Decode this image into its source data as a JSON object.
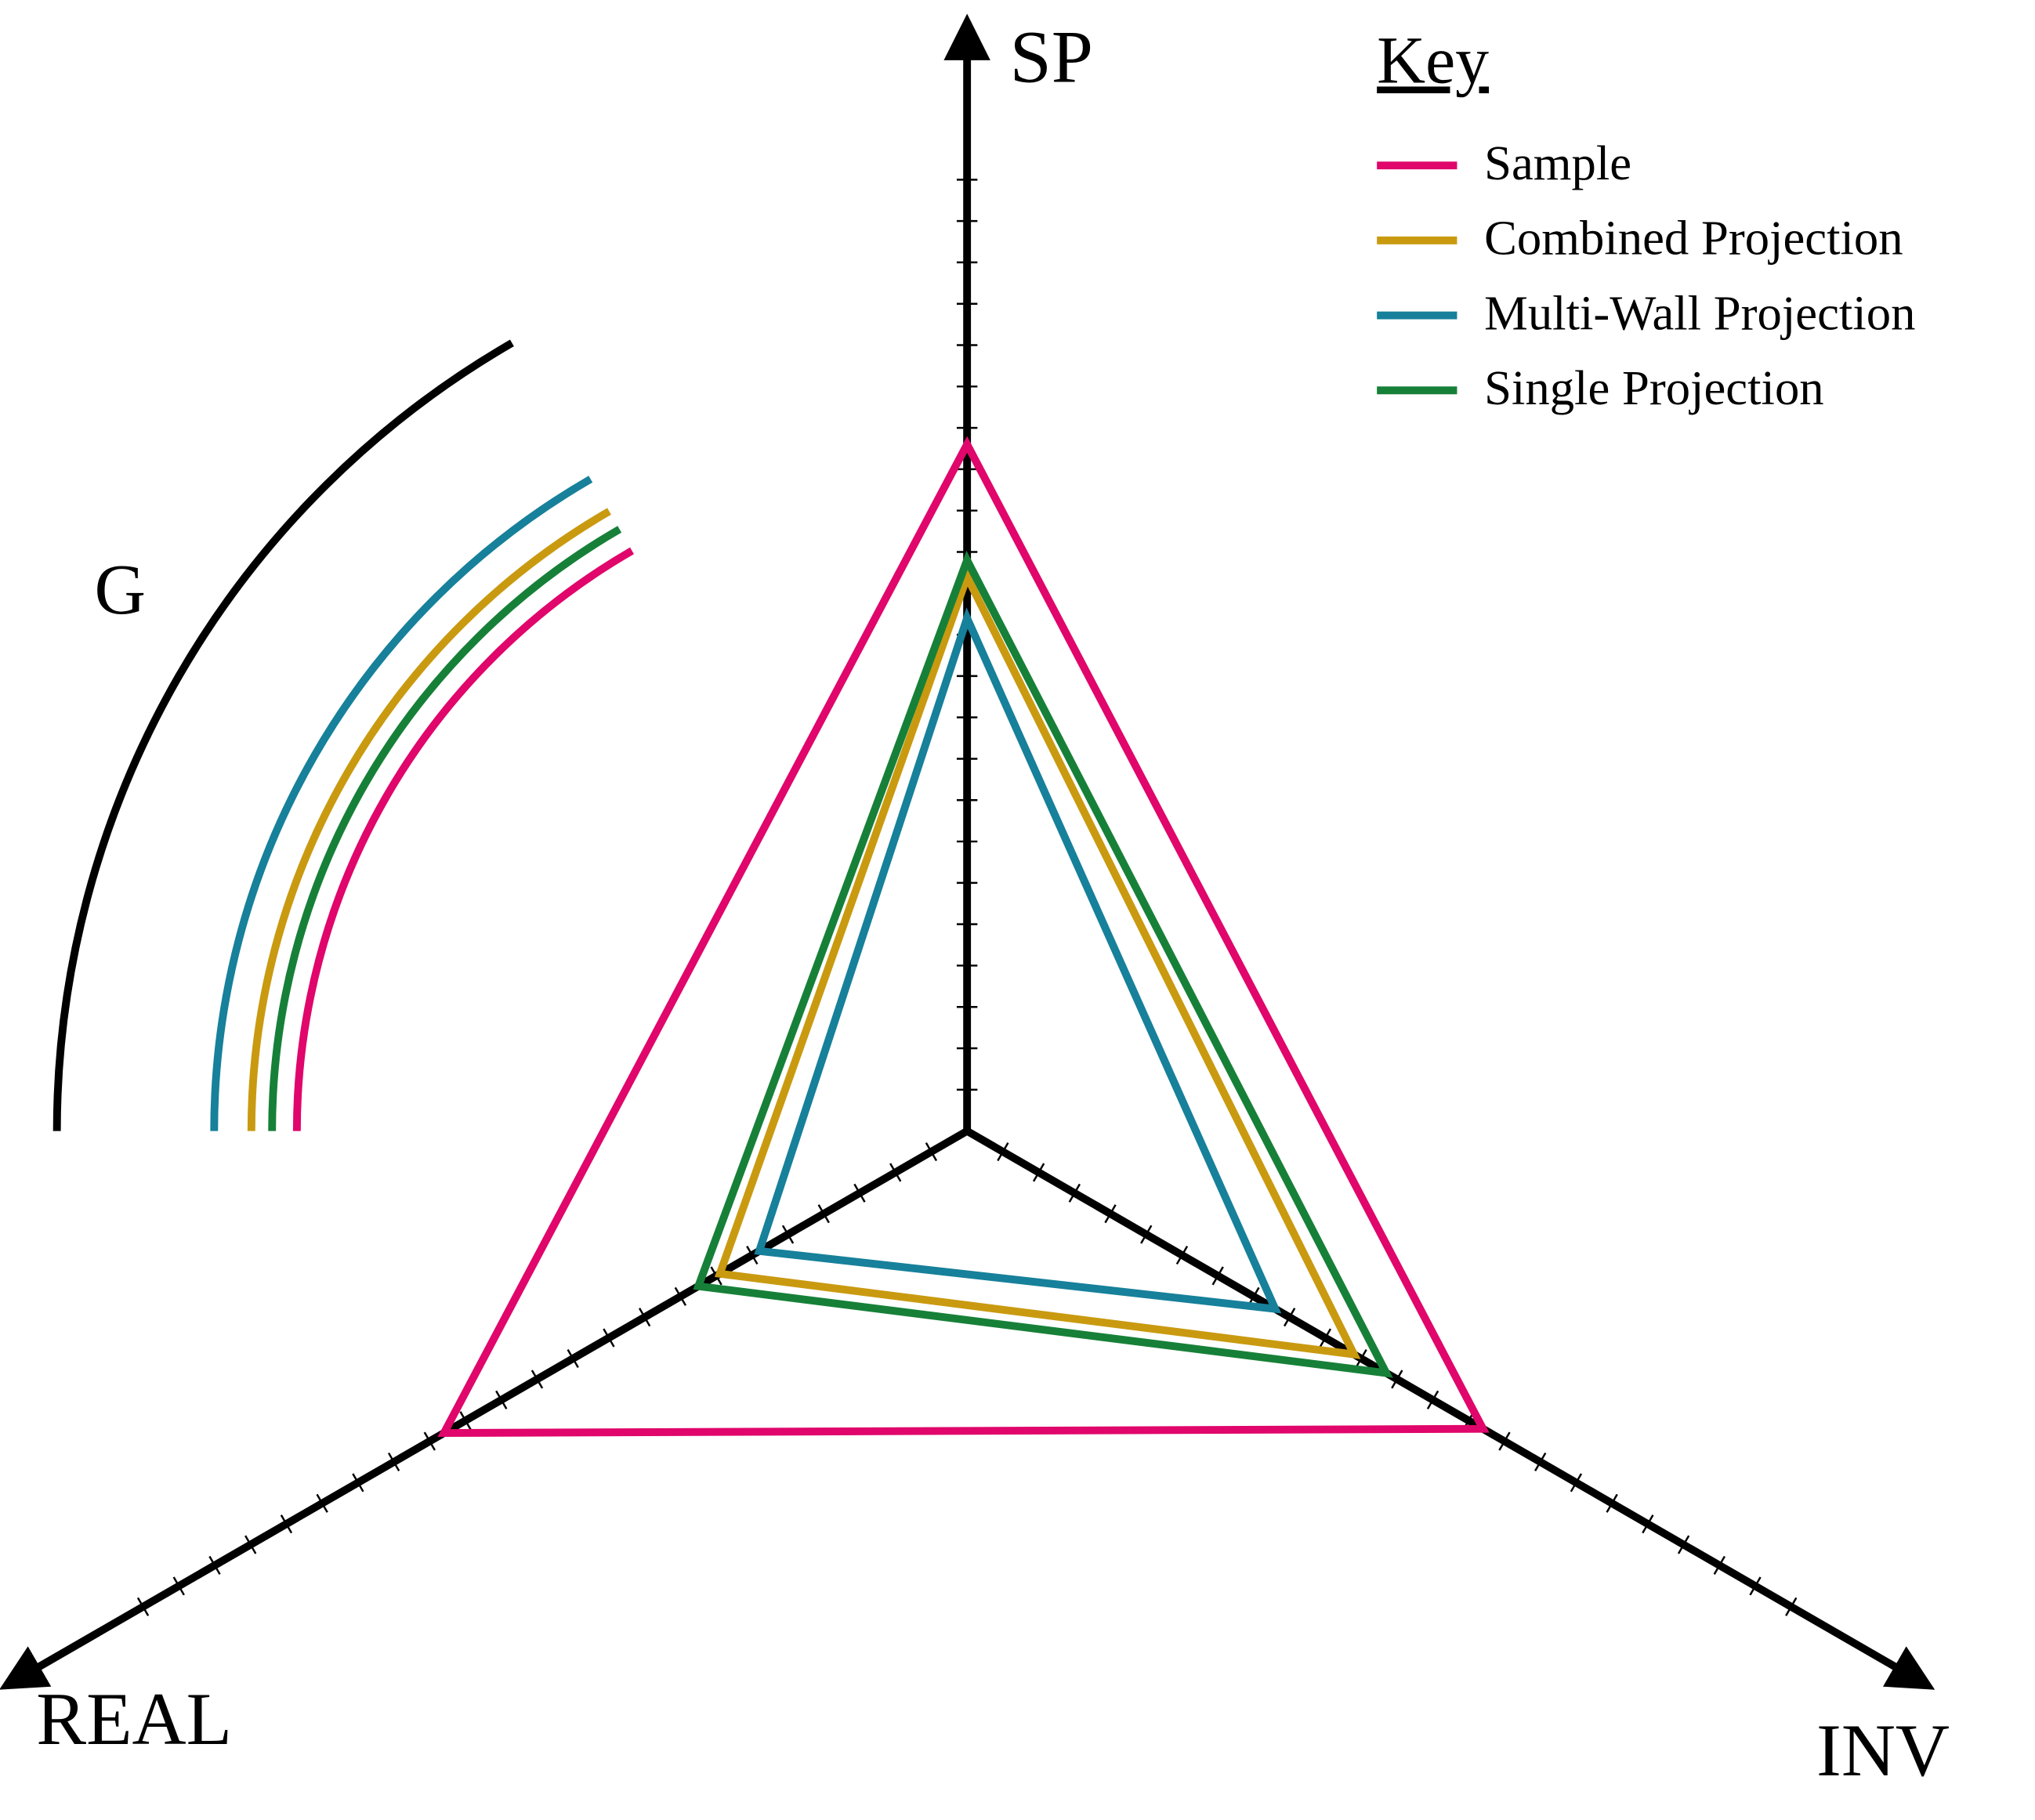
{
  "chart_data": {
    "type": "radar",
    "axes": [
      "SP",
      "INV",
      "REAL"
    ],
    "rlim": [
      0,
      26
    ],
    "rticks": [
      1,
      2,
      3,
      4,
      5,
      6,
      7,
      8,
      9,
      10,
      11,
      12,
      13,
      14,
      15,
      16,
      17,
      18,
      19,
      20,
      21,
      22,
      23
    ],
    "g_label": "G",
    "glim": [
      0,
      22
    ],
    "legend_title": "Key",
    "series": [
      {
        "name": "Sample",
        "color": "#e0066b",
        "values": [
          16.6,
          14.4,
          14.6
        ],
        "g": 16.2
      },
      {
        "name": "Combined Projection",
        "color": "#c99a10",
        "values": [
          13.4,
          10.8,
          6.9
        ],
        "g": 17.3
      },
      {
        "name": "Multi-Wall Projection",
        "color": "#17809a",
        "values": [
          12.4,
          8.6,
          5.8
        ],
        "g": 18.2
      },
      {
        "name": "Single Projection",
        "color": "#178038",
        "values": [
          13.8,
          11.7,
          7.5
        ],
        "g": 16.8
      }
    ]
  }
}
